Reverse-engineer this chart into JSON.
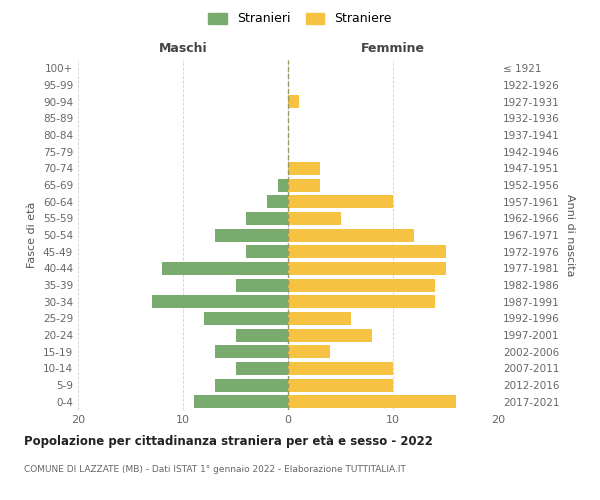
{
  "age_groups": [
    "0-4",
    "5-9",
    "10-14",
    "15-19",
    "20-24",
    "25-29",
    "30-34",
    "35-39",
    "40-44",
    "45-49",
    "50-54",
    "55-59",
    "60-64",
    "65-69",
    "70-74",
    "75-79",
    "80-84",
    "85-89",
    "90-94",
    "95-99",
    "100+"
  ],
  "birth_years": [
    "2017-2021",
    "2012-2016",
    "2007-2011",
    "2002-2006",
    "1997-2001",
    "1992-1996",
    "1987-1991",
    "1982-1986",
    "1977-1981",
    "1972-1976",
    "1967-1971",
    "1962-1966",
    "1957-1961",
    "1952-1956",
    "1947-1951",
    "1942-1946",
    "1937-1941",
    "1932-1936",
    "1927-1931",
    "1922-1926",
    "≤ 1921"
  ],
  "maschi": [
    9,
    7,
    5,
    7,
    5,
    8,
    13,
    5,
    12,
    4,
    7,
    4,
    2,
    1,
    0,
    0,
    0,
    0,
    0,
    0,
    0
  ],
  "femmine": [
    16,
    10,
    10,
    4,
    8,
    6,
    14,
    14,
    15,
    15,
    12,
    5,
    10,
    3,
    3,
    0,
    0,
    0,
    1,
    0,
    0
  ],
  "color_maschi": "#7aab6e",
  "color_femmine": "#f5c242",
  "title": "Popolazione per cittadinanza straniera per età e sesso - 2022",
  "subtitle": "COMUNE DI LAZZATE (MB) - Dati ISTAT 1° gennaio 2022 - Elaborazione TUTTITALIA.IT",
  "label_maschi": "Maschi",
  "label_femmine": "Femmine",
  "ylabel_left": "Fasce di età",
  "ylabel_right": "Anni di nascita",
  "legend_maschi": "Stranieri",
  "legend_femmine": "Straniere",
  "xlim": 20,
  "background_color": "#ffffff",
  "grid_color": "#d0d0d0"
}
